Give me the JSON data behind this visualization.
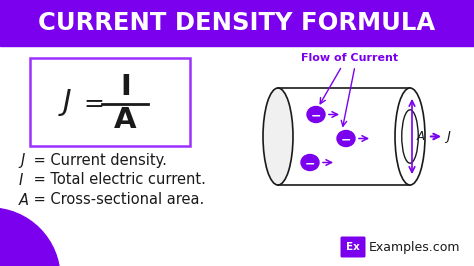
{
  "title": "CURRENT DENSITY FORMULA",
  "title_bg": "#7B00EE",
  "title_color": "#FFFFFF",
  "bg_color": "#FFFFFF",
  "formula_box_color": "#9B30FF",
  "purple": "#7B00EE",
  "purple_light": "#9B30FF",
  "black": "#1a1a1a",
  "flow_label": "Flow of Current",
  "j_label": "J",
  "a_label": "A",
  "logo_text": "Ex",
  "logo_site": "Examples.com",
  "vars": [
    "J",
    "I",
    "A"
  ],
  "def_texts": [
    " = Current density.",
    " = Total electric current.",
    " = Cross-sectional area."
  ]
}
